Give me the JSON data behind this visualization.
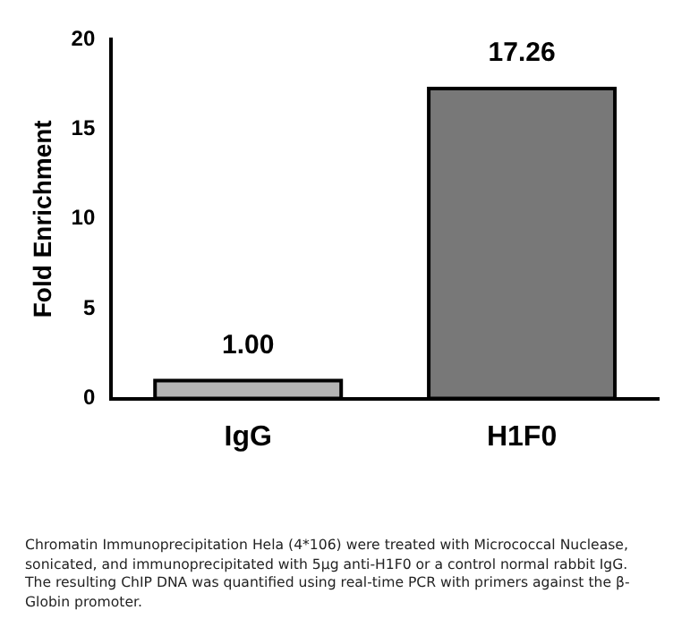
{
  "chart_data": {
    "type": "bar",
    "ylabel": "Fold Enrichment",
    "categories": [
      "IgG",
      "H1F0"
    ],
    "values": [
      1.0,
      17.26
    ],
    "value_labels": [
      "1.00",
      "17.26"
    ],
    "colors": [
      "#b4b4b4",
      "#787878"
    ],
    "ylim": [
      0,
      20
    ],
    "yticks": [
      0,
      5,
      10,
      15,
      20
    ],
    "grid": false,
    "legend": false,
    "annotations": [
      "Chromatin Immunoprecipitation Hela (4*106) were treated with Micrococcal Nuclease, sonicated, and immunoprecipitated with 5μg anti-H1F0 or a control normal rabbit IgG. The resulting ChIP DNA was quantified using real-time PCR with primers against the β-Globin promoter."
    ]
  }
}
